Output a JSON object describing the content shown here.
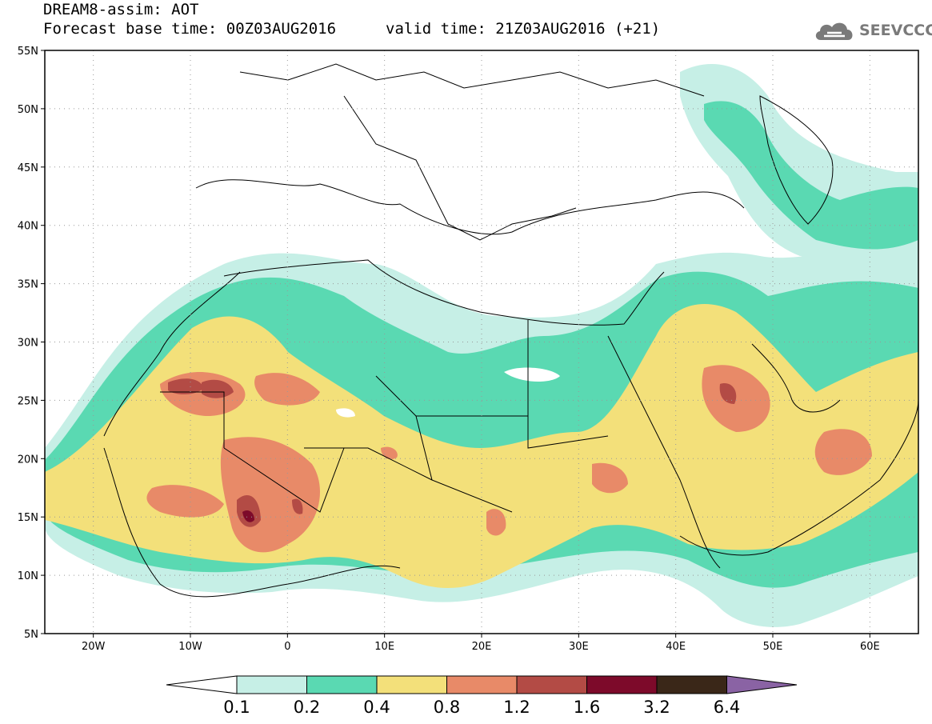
{
  "title": {
    "line1": "DREAM8-assim: AOT",
    "line2": "Forecast base time: 00Z03AUG2016",
    "valid": "valid time: 21Z03AUG2016 (+21)"
  },
  "logo": {
    "text": "SEEVCCC",
    "icon": "cloud-icon"
  },
  "map": {
    "lon_range": [
      -25,
      65
    ],
    "lat_range": [
      5,
      55
    ],
    "grid": "dotted",
    "lat_ticks": [
      "5N",
      "10N",
      "15N",
      "20N",
      "25N",
      "30N",
      "35N",
      "40N",
      "45N",
      "50N",
      "55N"
    ],
    "lon_ticks": [
      "20W",
      "10W",
      "0",
      "10E",
      "20E",
      "30E",
      "40E",
      "50E",
      "60E"
    ]
  },
  "colorbar": {
    "labels": [
      "0.1",
      "0.2",
      "0.4",
      "0.8",
      "1.2",
      "1.6",
      "3.2",
      "6.4"
    ],
    "colors": [
      "#ffffff",
      "#c6efe6",
      "#5ad9b2",
      "#f3e07a",
      "#e88a68",
      "#b34b45",
      "#7d0a2a",
      "#3a2718",
      "#8a63a4"
    ]
  }
}
